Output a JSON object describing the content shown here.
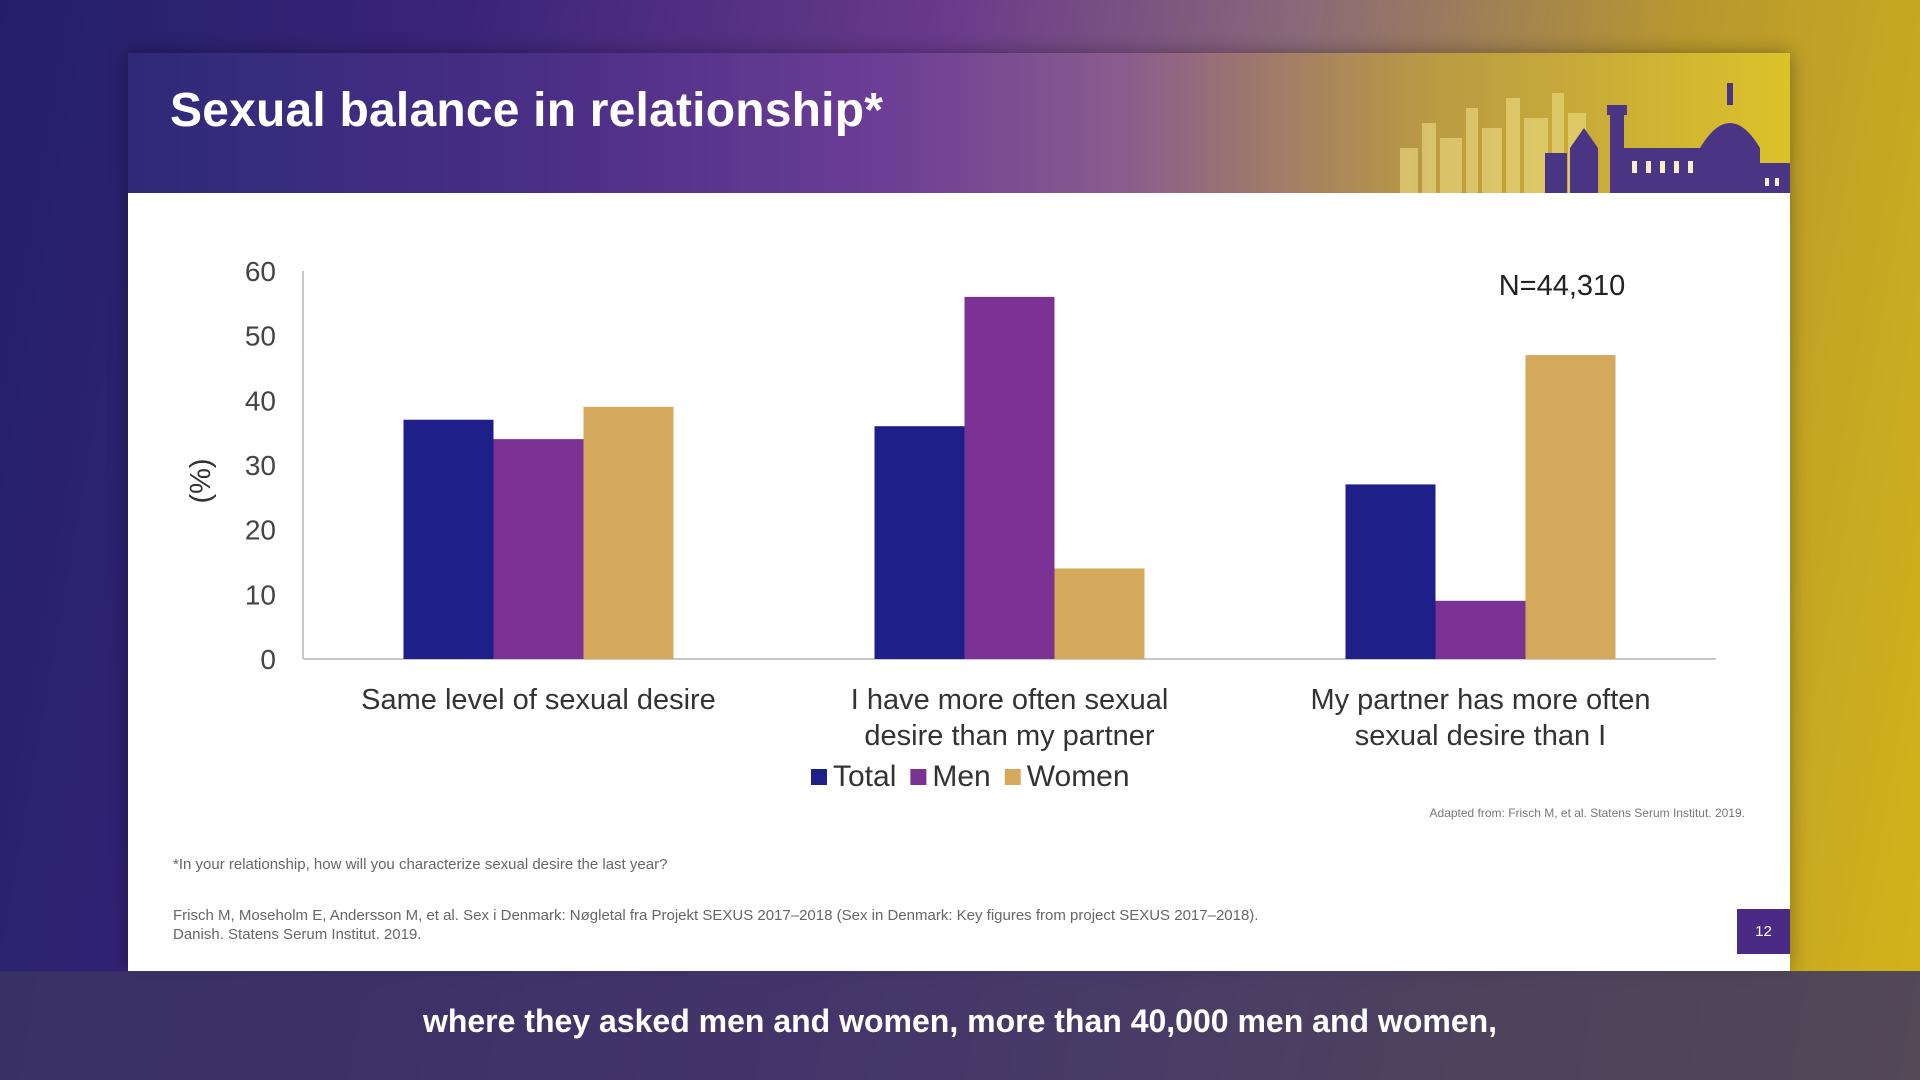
{
  "slide": {
    "title": "Sexual balance in relationship*",
    "page_number": "12",
    "source_note": "Adapted from: Frisch M, et al. Statens Serum Institut. 2019.",
    "footnote": "*In your relationship, how will you characterize sexual desire the last year?",
    "reference_line1": "Frisch M, Moseholm E, Andersson M, et al. Sex i Denmark: Nøgletal fra Projekt SEXUS 2017–2018 (Sex in Denmark: Key figures from project SEXUS 2017–2018).",
    "reference_line2": "Danish. Statens Serum Institut. 2019."
  },
  "chart_data": {
    "type": "bar",
    "title": "",
    "xlabel": "",
    "ylabel": "(%)",
    "ylim": [
      0,
      60
    ],
    "yticks": [
      0,
      10,
      20,
      30,
      40,
      50,
      60
    ],
    "grid": false,
    "legend_position": "bottom",
    "annotation": "N=44,310",
    "categories": [
      [
        "Same level of sexual desire"
      ],
      [
        "I have more often sexual",
        "desire than my partner"
      ],
      [
        "My partner has more often",
        "sexual desire than I"
      ]
    ],
    "series": [
      {
        "name": "Total",
        "color": "#1f1f8a",
        "values": [
          37,
          36,
          27
        ]
      },
      {
        "name": "Men",
        "color": "#7b3294",
        "values": [
          34,
          56,
          9
        ]
      },
      {
        "name": "Women",
        "color": "#d4a95c",
        "values": [
          39,
          14,
          47
        ]
      }
    ]
  },
  "caption": {
    "text": "where they asked men and women, more than 40,000 men and women,"
  }
}
